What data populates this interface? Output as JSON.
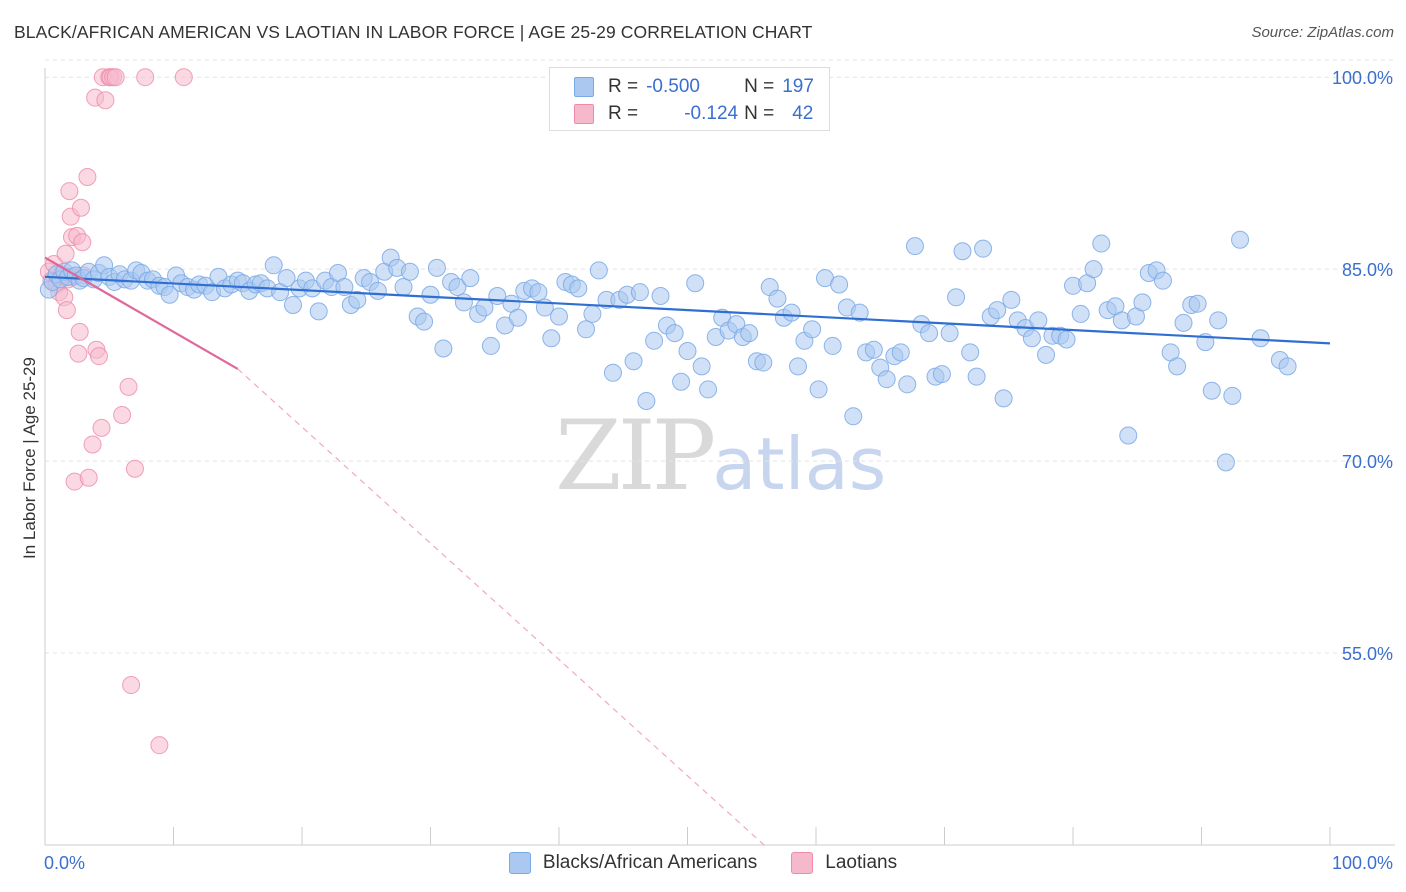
{
  "title": "BLACK/AFRICAN AMERICAN VS LAOTIAN IN LABOR FORCE | AGE 25-29 CORRELATION CHART",
  "source": "Source: ZipAtlas.com",
  "watermark": {
    "zip": "ZIP",
    "atlas": "atlas"
  },
  "legend": {
    "rows": [
      {
        "r_label": "R =",
        "r_value": "-0.500",
        "n_label": "N =",
        "n_value": "197",
        "color": "#aac8f0"
      },
      {
        "r_label": "R =",
        "r_value": "-0.124",
        "n_label": "N =",
        "n_value": "42",
        "color": "#f6b9cc"
      }
    ]
  },
  "bottom_legend": [
    {
      "label": "Blacks/African Americans",
      "color": "#aac8f0"
    },
    {
      "label": "Laotians",
      "color": "#f6b9cc"
    }
  ],
  "colors": {
    "blue_fill": "#aac8f0",
    "blue_stroke": "#7aa8e6",
    "blue_line": "#2f6fd1",
    "pink_fill": "#f6b9cc",
    "pink_stroke": "#ee8aab",
    "pink_line": "#e0679a"
  },
  "chart_data": {
    "type": "scatter",
    "title": "BLACK/AFRICAN AMERICAN VS LAOTIAN IN LABOR FORCE | AGE 25-29 CORRELATION CHART",
    "xlabel": "",
    "ylabel": "In Labor Force | Age 25-29",
    "xlim": [
      0,
      100
    ],
    "ylim": [
      40,
      101.5
    ],
    "x_tick_labels": [
      "0.0%",
      "100.0%"
    ],
    "y_ticks": [
      55,
      70,
      85,
      100
    ],
    "y_tick_labels": [
      "55.0%",
      "70.0%",
      "85.0%",
      "100.0%"
    ],
    "series": [
      {
        "name": "Blacks/African Americans",
        "trend": {
          "x": [
            0,
            100
          ],
          "y": [
            84.4,
            79.2
          ],
          "style": "solid"
        },
        "points": [
          [
            0.3,
            83.4
          ],
          [
            0.6,
            84.0
          ],
          [
            0.9,
            84.6
          ],
          [
            1.2,
            84.2
          ],
          [
            1.5,
            84.8
          ],
          [
            1.8,
            84.4
          ],
          [
            2.1,
            84.9
          ],
          [
            2.4,
            84.5
          ],
          [
            2.7,
            84.1
          ],
          [
            3.0,
            84.3
          ],
          [
            3.4,
            84.8
          ],
          [
            3.8,
            84.2
          ],
          [
            4.2,
            84.7
          ],
          [
            4.6,
            85.3
          ],
          [
            5.0,
            84.4
          ],
          [
            5.4,
            84.0
          ],
          [
            5.8,
            84.6
          ],
          [
            6.2,
            84.2
          ],
          [
            6.7,
            84.1
          ],
          [
            7.1,
            84.9
          ],
          [
            7.5,
            84.7
          ],
          [
            8.0,
            84.1
          ],
          [
            8.4,
            84.2
          ],
          [
            8.9,
            83.7
          ],
          [
            9.3,
            83.6
          ],
          [
            9.7,
            83.0
          ],
          [
            10.2,
            84.5
          ],
          [
            10.6,
            83.9
          ],
          [
            11.1,
            83.6
          ],
          [
            11.6,
            83.4
          ],
          [
            12.0,
            83.8
          ],
          [
            12.5,
            83.7
          ],
          [
            13.0,
            83.2
          ],
          [
            13.5,
            84.4
          ],
          [
            14.0,
            83.5
          ],
          [
            14.5,
            83.8
          ],
          [
            15.0,
            84.1
          ],
          [
            15.4,
            83.9
          ],
          [
            15.9,
            83.3
          ],
          [
            16.4,
            83.8
          ],
          [
            16.8,
            83.9
          ],
          [
            17.3,
            83.5
          ],
          [
            17.8,
            85.3
          ],
          [
            18.3,
            83.2
          ],
          [
            18.8,
            84.3
          ],
          [
            19.3,
            82.2
          ],
          [
            19.8,
            83.5
          ],
          [
            20.3,
            84.1
          ],
          [
            20.8,
            83.5
          ],
          [
            21.3,
            81.7
          ],
          [
            21.8,
            84.1
          ],
          [
            22.3,
            83.6
          ],
          [
            22.8,
            84.7
          ],
          [
            23.3,
            83.6
          ],
          [
            23.8,
            82.2
          ],
          [
            24.3,
            82.6
          ],
          [
            24.8,
            84.3
          ],
          [
            25.3,
            84.0
          ],
          [
            25.9,
            83.3
          ],
          [
            26.4,
            84.8
          ],
          [
            26.9,
            85.9
          ],
          [
            27.4,
            85.1
          ],
          [
            27.9,
            83.6
          ],
          [
            28.4,
            84.8
          ],
          [
            29.0,
            81.3
          ],
          [
            29.5,
            80.9
          ],
          [
            30.0,
            83.0
          ],
          [
            30.5,
            85.1
          ],
          [
            31.0,
            78.8
          ],
          [
            31.6,
            84.0
          ],
          [
            32.1,
            83.6
          ],
          [
            32.6,
            82.4
          ],
          [
            33.1,
            84.3
          ],
          [
            33.7,
            81.5
          ],
          [
            34.2,
            82.0
          ],
          [
            34.7,
            79.0
          ],
          [
            35.2,
            82.9
          ],
          [
            35.8,
            80.6
          ],
          [
            36.3,
            82.3
          ],
          [
            36.8,
            81.2
          ],
          [
            37.3,
            83.3
          ],
          [
            37.9,
            83.5
          ],
          [
            38.4,
            83.2
          ],
          [
            38.9,
            82.0
          ],
          [
            39.4,
            79.6
          ],
          [
            40.0,
            81.3
          ],
          [
            40.5,
            84.0
          ],
          [
            41.0,
            83.8
          ],
          [
            41.5,
            83.5
          ],
          [
            42.1,
            80.3
          ],
          [
            42.6,
            81.5
          ],
          [
            43.1,
            84.9
          ],
          [
            43.7,
            82.6
          ],
          [
            44.2,
            76.9
          ],
          [
            44.7,
            82.6
          ],
          [
            45.3,
            83.0
          ],
          [
            45.8,
            77.8
          ],
          [
            46.3,
            83.2
          ],
          [
            46.8,
            74.7
          ],
          [
            47.4,
            79.4
          ],
          [
            47.9,
            82.9
          ],
          [
            48.4,
            80.6
          ],
          [
            49.0,
            80.0
          ],
          [
            49.5,
            76.2
          ],
          [
            50.0,
            78.6
          ],
          [
            50.6,
            83.9
          ],
          [
            51.1,
            77.4
          ],
          [
            51.6,
            75.6
          ],
          [
            52.2,
            79.7
          ],
          [
            52.7,
            81.2
          ],
          [
            53.2,
            80.2
          ],
          [
            53.8,
            80.7
          ],
          [
            54.3,
            79.7
          ],
          [
            54.8,
            80.0
          ],
          [
            55.4,
            77.8
          ],
          [
            55.9,
            77.7
          ],
          [
            56.4,
            83.6
          ],
          [
            57.0,
            82.7
          ],
          [
            57.5,
            81.2
          ],
          [
            58.1,
            81.6
          ],
          [
            58.6,
            77.4
          ],
          [
            59.1,
            79.4
          ],
          [
            59.7,
            80.3
          ],
          [
            60.2,
            75.6
          ],
          [
            60.7,
            84.3
          ],
          [
            61.3,
            79.0
          ],
          [
            61.8,
            83.8
          ],
          [
            62.4,
            82.0
          ],
          [
            62.9,
            73.5
          ],
          [
            63.4,
            81.6
          ],
          [
            63.9,
            78.5
          ],
          [
            64.5,
            78.7
          ],
          [
            65.0,
            77.3
          ],
          [
            65.5,
            76.4
          ],
          [
            66.1,
            78.2
          ],
          [
            66.6,
            78.5
          ],
          [
            67.1,
            76.0
          ],
          [
            67.7,
            86.8
          ],
          [
            68.2,
            80.7
          ],
          [
            68.8,
            80.0
          ],
          [
            69.3,
            76.6
          ],
          [
            69.8,
            76.8
          ],
          [
            70.4,
            80.0
          ],
          [
            70.9,
            82.8
          ],
          [
            71.4,
            86.4
          ],
          [
            72.0,
            78.5
          ],
          [
            72.5,
            76.6
          ],
          [
            73.0,
            86.6
          ],
          [
            73.6,
            81.3
          ],
          [
            74.1,
            81.8
          ],
          [
            74.6,
            74.9
          ],
          [
            75.2,
            82.6
          ],
          [
            75.7,
            81.0
          ],
          [
            76.3,
            80.4
          ],
          [
            76.8,
            79.6
          ],
          [
            77.3,
            81.0
          ],
          [
            77.9,
            78.3
          ],
          [
            78.4,
            79.8
          ],
          [
            79.0,
            79.8
          ],
          [
            79.5,
            79.5
          ],
          [
            80.0,
            83.7
          ],
          [
            80.6,
            81.5
          ],
          [
            81.1,
            83.9
          ],
          [
            81.6,
            85.0
          ],
          [
            82.2,
            87.0
          ],
          [
            82.7,
            81.8
          ],
          [
            83.3,
            82.1
          ],
          [
            83.8,
            81.0
          ],
          [
            84.3,
            72.0
          ],
          [
            84.9,
            81.3
          ],
          [
            85.4,
            82.4
          ],
          [
            85.9,
            84.7
          ],
          [
            86.5,
            84.9
          ],
          [
            87.0,
            84.1
          ],
          [
            87.6,
            78.5
          ],
          [
            88.1,
            77.4
          ],
          [
            88.6,
            80.8
          ],
          [
            89.2,
            82.2
          ],
          [
            89.7,
            82.3
          ],
          [
            90.3,
            79.3
          ],
          [
            90.8,
            75.5
          ],
          [
            91.3,
            81.0
          ],
          [
            91.9,
            69.9
          ],
          [
            92.4,
            75.1
          ],
          [
            93.0,
            87.3
          ],
          [
            94.6,
            79.6
          ],
          [
            96.1,
            77.9
          ],
          [
            96.7,
            77.4
          ]
        ]
      },
      {
        "name": "Laotians",
        "trend": {
          "x": [
            0,
            15,
            100
          ],
          "y": [
            85.9,
            77.2,
            0
          ],
          "style": "solid-then-dashed"
        },
        "points": [
          [
            0.3,
            84.8
          ],
          [
            0.5,
            84.1
          ],
          [
            0.7,
            85.4
          ],
          [
            0.9,
            83.8
          ],
          [
            1.1,
            83.2
          ],
          [
            1.3,
            84.6
          ],
          [
            1.5,
            82.8
          ],
          [
            1.6,
            86.2
          ],
          [
            1.7,
            81.8
          ],
          [
            1.8,
            84.2
          ],
          [
            1.9,
            91.1
          ],
          [
            2.0,
            89.1
          ],
          [
            2.1,
            87.5
          ],
          [
            2.2,
            84.4
          ],
          [
            2.3,
            68.4
          ],
          [
            2.5,
            87.6
          ],
          [
            2.6,
            78.4
          ],
          [
            2.7,
            80.1
          ],
          [
            2.8,
            89.8
          ],
          [
            2.9,
            87.1
          ],
          [
            3.0,
            84.5
          ],
          [
            3.3,
            92.2
          ],
          [
            3.4,
            68.7
          ],
          [
            3.7,
            71.3
          ],
          [
            3.9,
            98.4
          ],
          [
            4.0,
            78.7
          ],
          [
            4.2,
            78.2
          ],
          [
            4.4,
            72.6
          ],
          [
            4.5,
            100.0
          ],
          [
            4.7,
            98.2
          ],
          [
            5.0,
            100.0
          ],
          [
            5.1,
            100.0
          ],
          [
            5.3,
            100.0
          ],
          [
            5.5,
            100.0
          ],
          [
            6.0,
            73.6
          ],
          [
            6.5,
            75.8
          ],
          [
            6.7,
            52.5
          ],
          [
            7.0,
            69.4
          ],
          [
            7.8,
            100.0
          ],
          [
            8.9,
            47.8
          ],
          [
            10.8,
            100.0
          ]
        ]
      }
    ]
  }
}
